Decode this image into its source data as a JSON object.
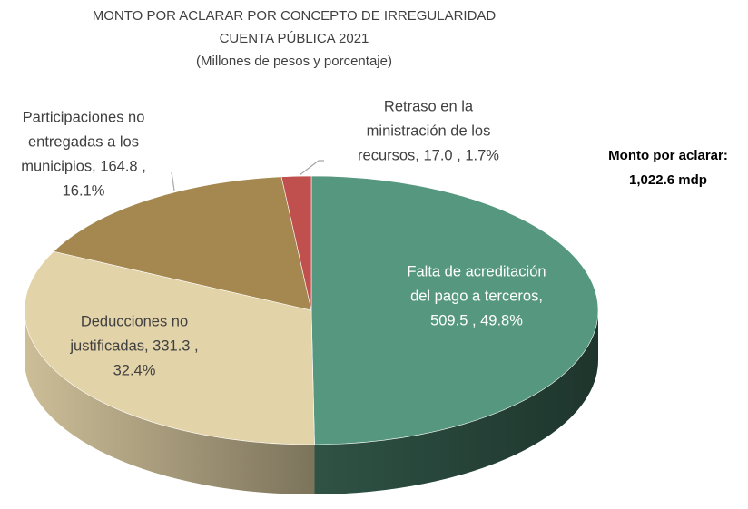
{
  "chart_data": {
    "type": "pie",
    "title": [
      "MONTO POR ACLARAR POR CONCEPTO DE IRREGULARIDAD",
      "CUENTA PÚBLICA 2021",
      "(Millones de pesos y porcentaje)"
    ],
    "annotation": [
      "Monto por aclarar:",
      "1,022.6 mdp"
    ],
    "categories": [
      "Falta de acreditación del pago a terceros",
      "Deducciones no justificadas",
      "Participaciones no entregadas a los municipios",
      "Retraso en la ministración de los recursos"
    ],
    "values": [
      509.5,
      331.3,
      164.8,
      17.0
    ],
    "labels": [
      [
        "Falta de acreditación",
        "del pago a terceros,",
        "509.5 , 49.8%"
      ],
      [
        "Deducciones no",
        "justificadas,  331.3 ,",
        "32.4%"
      ],
      [
        "Participaciones no",
        "entregadas a los",
        "municipios,  164.8 ,",
        "16.1%"
      ],
      [
        "Retraso en la",
        "ministración de los",
        "recursos,  17.0 , 1.7%"
      ]
    ],
    "colors": [
      "#56977f",
      "#e3d3a8",
      "#a58850",
      "#c0504d"
    ],
    "label_colors": [
      "#ffffff",
      "#404040",
      "#404040",
      "#404040"
    ]
  }
}
